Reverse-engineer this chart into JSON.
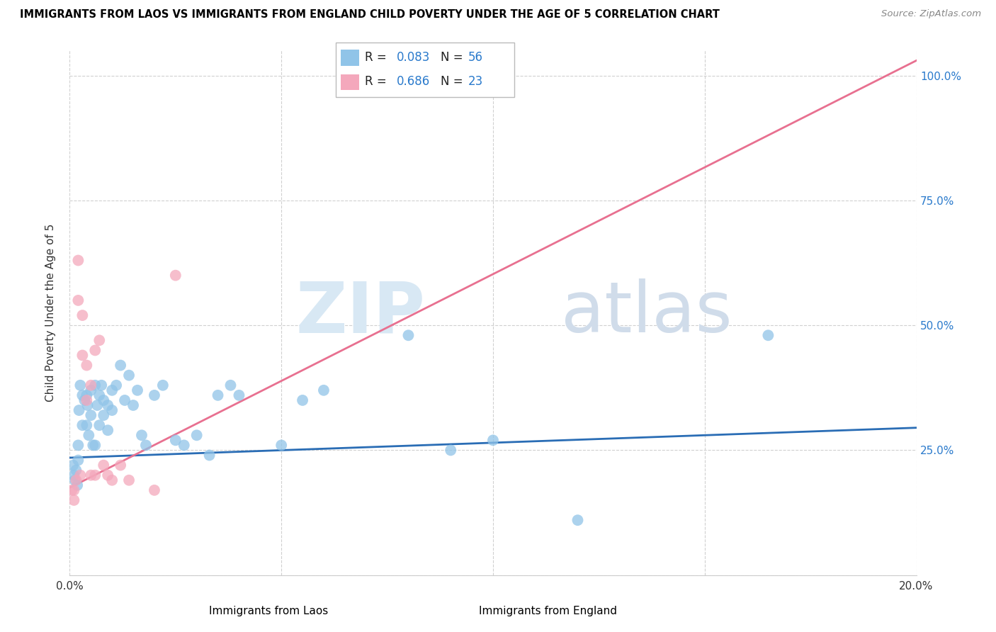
{
  "title": "IMMIGRANTS FROM LAOS VS IMMIGRANTS FROM ENGLAND CHILD POVERTY UNDER THE AGE OF 5 CORRELATION CHART",
  "source": "Source: ZipAtlas.com",
  "ylabel": "Child Poverty Under the Age of 5",
  "xlabel_laos": "Immigrants from Laos",
  "xlabel_england": "Immigrants from England",
  "r_laos": 0.083,
  "n_laos": 56,
  "r_england": 0.686,
  "n_england": 23,
  "color_laos": "#90c4e8",
  "color_england": "#f4a8bc",
  "line_color_laos": "#2a6db5",
  "line_color_england": "#e87090",
  "xlim": [
    0.0,
    0.2
  ],
  "ylim": [
    0.0,
    1.05
  ],
  "laos_x": [
    0.0008,
    0.001,
    0.0012,
    0.0015,
    0.0018,
    0.002,
    0.002,
    0.0022,
    0.0025,
    0.003,
    0.003,
    0.0035,
    0.004,
    0.004,
    0.0042,
    0.0045,
    0.005,
    0.005,
    0.0055,
    0.006,
    0.006,
    0.0065,
    0.007,
    0.007,
    0.0075,
    0.008,
    0.008,
    0.009,
    0.009,
    0.01,
    0.01,
    0.011,
    0.012,
    0.013,
    0.014,
    0.015,
    0.016,
    0.017,
    0.018,
    0.02,
    0.022,
    0.025,
    0.027,
    0.03,
    0.033,
    0.035,
    0.038,
    0.04,
    0.05,
    0.055,
    0.06,
    0.08,
    0.09,
    0.1,
    0.12,
    0.165
  ],
  "laos_y": [
    0.22,
    0.2,
    0.19,
    0.21,
    0.18,
    0.26,
    0.23,
    0.33,
    0.38,
    0.36,
    0.3,
    0.35,
    0.36,
    0.3,
    0.34,
    0.28,
    0.37,
    0.32,
    0.26,
    0.38,
    0.26,
    0.34,
    0.36,
    0.3,
    0.38,
    0.35,
    0.32,
    0.34,
    0.29,
    0.37,
    0.33,
    0.38,
    0.42,
    0.35,
    0.4,
    0.34,
    0.37,
    0.28,
    0.26,
    0.36,
    0.38,
    0.27,
    0.26,
    0.28,
    0.24,
    0.36,
    0.38,
    0.36,
    0.26,
    0.35,
    0.37,
    0.48,
    0.25,
    0.27,
    0.11,
    0.48
  ],
  "england_x": [
    0.0005,
    0.001,
    0.001,
    0.0015,
    0.002,
    0.002,
    0.0025,
    0.003,
    0.003,
    0.004,
    0.004,
    0.005,
    0.005,
    0.006,
    0.006,
    0.007,
    0.008,
    0.009,
    0.01,
    0.012,
    0.014,
    0.02,
    0.025
  ],
  "england_y": [
    0.17,
    0.15,
    0.17,
    0.19,
    0.55,
    0.63,
    0.2,
    0.44,
    0.52,
    0.35,
    0.42,
    0.38,
    0.2,
    0.45,
    0.2,
    0.47,
    0.22,
    0.2,
    0.19,
    0.22,
    0.19,
    0.17,
    0.6
  ],
  "trend_laos_x0": 0.0,
  "trend_laos_x1": 0.2,
  "trend_laos_y0": 0.235,
  "trend_laos_y1": 0.295,
  "trend_eng_x0": 0.0,
  "trend_eng_x1": 0.2,
  "trend_eng_y0": 0.175,
  "trend_eng_y1": 1.03
}
